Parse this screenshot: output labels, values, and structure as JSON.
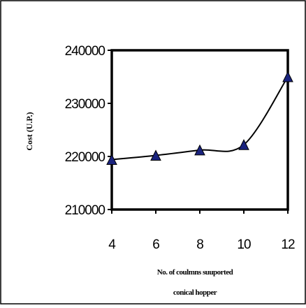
{
  "chart_data": {
    "type": "line",
    "title": "",
    "xlabel_lines": [
      "No. of coulmns suuported",
      "conical hopper"
    ],
    "ylabel": "Cost (U.P.)",
    "x_ticks": [
      "4",
      "6",
      "8",
      "10",
      "12"
    ],
    "y_ticks": [
      "210000",
      "220000",
      "230000",
      "240000"
    ],
    "xlim": [
      4,
      12
    ],
    "ylim": [
      210000,
      240000
    ],
    "grid": false,
    "legend": "none",
    "marker": "triangle",
    "marker_color": "#1a237e",
    "line_color": "#000000",
    "series": [
      {
        "x": [
          4,
          6,
          8,
          10,
          12
        ],
        "y": [
          219400,
          220200,
          221200,
          222200,
          235000
        ]
      }
    ]
  }
}
